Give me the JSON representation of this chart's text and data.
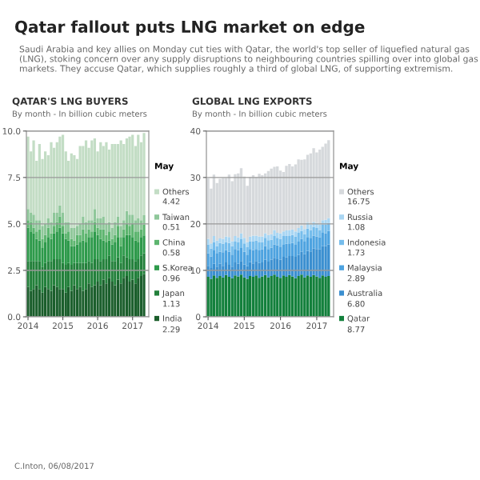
{
  "chart_data": [
    {
      "type": "other",
      "title": "Qatar fallout puts LNG market on edge",
      "subtitle": "Saudi Arabia and key allies on Monday cut ties with Qatar, the world's top seller of liquefied natural gas (LNG), stoking concern over any supply disruptions to neighbouring countries spilling over into global gas markets. They accuse Qatar, which supplies roughly a third of global LNG, of supporting extremism.",
      "annotations": [
        "C.Inton, 06/08/2017"
      ]
    },
    {
      "type": "bar",
      "stacked": true,
      "title": "QATAR'S LNG BUYERS",
      "subtitle": "By month - In billion cubic meters",
      "legend": "right",
      "legend_title": "May",
      "annotations": [
        "4.42",
        "0.51",
        "0.58",
        "0.96",
        "1.13",
        "2.29"
      ],
      "grid": "y",
      "x": [
        "2014-01",
        "2014-02",
        "2014-03",
        "2014-04",
        "2014-05",
        "2014-06",
        "2014-07",
        "2014-08",
        "2014-09",
        "2014-10",
        "2014-11",
        "2014-12",
        "2015-01",
        "2015-02",
        "2015-03",
        "2015-04",
        "2015-05",
        "2015-06",
        "2015-07",
        "2015-08",
        "2015-09",
        "2015-10",
        "2015-11",
        "2015-12",
        "2016-01",
        "2016-02",
        "2016-03",
        "2016-04",
        "2016-05",
        "2016-06",
        "2016-07",
        "2016-08",
        "2016-09",
        "2016-10",
        "2016-11",
        "2016-12",
        "2017-01",
        "2017-02",
        "2017-03",
        "2017-04",
        "2017-05"
      ],
      "xlim": [
        "2013-12-15",
        "2017-06-20"
      ],
      "xticks": [
        "2014",
        "2015",
        "2016",
        "2017"
      ],
      "ylim": [
        0,
        10
      ],
      "yticks": [
        {
          "value": 0,
          "label": "0.0"
        },
        {
          "value": 2.5,
          "label": "2.5"
        },
        {
          "value": 5,
          "label": "5.0"
        },
        {
          "value": 7.5,
          "label": "7.5"
        },
        {
          "value": 10,
          "label": "10.0"
        }
      ],
      "series": [
        {
          "name": "India",
          "color": "#1b5e2c",
          "values": [
            1.6,
            1.4,
            1.5,
            1.7,
            1.5,
            1.3,
            1.6,
            1.5,
            1.4,
            1.7,
            1.6,
            1.5,
            1.5,
            1.3,
            1.6,
            1.4,
            1.7,
            1.5,
            1.6,
            1.4,
            1.5,
            1.8,
            1.6,
            1.7,
            1.9,
            1.7,
            2.0,
            1.8,
            2.1,
            1.9,
            1.7,
            2.0,
            1.8,
            2.1,
            2.2,
            1.9,
            2.0,
            1.8,
            2.1,
            2.2,
            2.29
          ]
        },
        {
          "name": "Japan",
          "color": "#23803b",
          "values": [
            1.4,
            1.6,
            1.5,
            1.3,
            1.5,
            1.4,
            1.3,
            1.5,
            1.6,
            1.4,
            1.5,
            1.6,
            1.4,
            1.5,
            1.3,
            1.4,
            1.2,
            1.4,
            1.3,
            1.5,
            1.4,
            1.2,
            1.3,
            1.4,
            1.2,
            1.3,
            1.1,
            1.3,
            1.2,
            1.1,
            1.3,
            1.2,
            1.1,
            1.2,
            1.0,
            1.2,
            1.1,
            1.2,
            1.0,
            1.1,
            1.13
          ]
        },
        {
          "name": "S.Korea",
          "color": "#2e9a4b",
          "values": [
            1.8,
            1.6,
            1.5,
            1.2,
            1.1,
            1.0,
            1.1,
            1.3,
            1.2,
            1.4,
            1.5,
            1.7,
            1.6,
            1.4,
            1.2,
            1.0,
            0.9,
            1.0,
            1.1,
            1.2,
            1.1,
            1.3,
            1.4,
            1.5,
            1.3,
            1.2,
            1.0,
            0.9,
            0.8,
            0.9,
            1.0,
            1.1,
            0.9,
            1.0,
            1.2,
            1.3,
            1.2,
            1.1,
            0.9,
            1.0,
            0.96
          ]
        },
        {
          "name": "China",
          "color": "#5db56f",
          "values": [
            0.4,
            0.5,
            0.3,
            0.4,
            0.6,
            0.5,
            0.4,
            0.5,
            0.3,
            0.4,
            0.5,
            0.6,
            0.4,
            0.3,
            0.5,
            0.4,
            0.3,
            0.5,
            0.4,
            0.6,
            0.5,
            0.4,
            0.3,
            0.5,
            0.4,
            0.5,
            0.6,
            0.4,
            0.5,
            0.3,
            0.4,
            0.6,
            0.5,
            0.4,
            0.6,
            0.5,
            0.7,
            0.5,
            0.6,
            0.4,
            0.58
          ]
        },
        {
          "name": "Taiwan",
          "color": "#8fc79a",
          "values": [
            0.6,
            0.5,
            0.7,
            0.6,
            0.5,
            0.7,
            0.6,
            0.5,
            0.6,
            0.7,
            0.5,
            0.6,
            0.7,
            0.6,
            0.5,
            0.6,
            0.7,
            0.5,
            0.6,
            0.7,
            0.6,
            0.5,
            0.6,
            0.7,
            0.5,
            0.6,
            0.7,
            0.6,
            0.5,
            0.6,
            0.7,
            0.5,
            0.6,
            0.5,
            0.7,
            0.6,
            0.5,
            0.6,
            0.7,
            0.5,
            0.51
          ]
        },
        {
          "name": "Others",
          "color": "#c3ddc5",
          "values": [
            3.9,
            3.3,
            4.0,
            3.2,
            4.1,
            3.6,
            3.9,
            3.4,
            4.3,
            3.5,
            3.8,
            3.7,
            4.2,
            3.8,
            3.3,
            4.0,
            3.9,
            3.6,
            4.2,
            3.8,
            4.4,
            3.9,
            4.3,
            3.8,
            3.6,
            4.1,
            3.8,
            4.4,
            3.9,
            4.5,
            4.2,
            3.9,
            4.6,
            4.1,
            3.9,
            4.2,
            4.3,
            4.0,
            4.5,
            4.2,
            4.42
          ]
        }
      ]
    },
    {
      "type": "bar",
      "stacked": true,
      "title": "GLOBAL LNG EXPORTS",
      "subtitle": "By month - In billion cubic meters",
      "legend": "right",
      "legend_title": "May",
      "annotations": [
        "16.75",
        "1.08",
        "1.73",
        "2.89",
        "6.80",
        "8.77"
      ],
      "grid": "y",
      "x": [
        "2014-01",
        "2014-02",
        "2014-03",
        "2014-04",
        "2014-05",
        "2014-06",
        "2014-07",
        "2014-08",
        "2014-09",
        "2014-10",
        "2014-11",
        "2014-12",
        "2015-01",
        "2015-02",
        "2015-03",
        "2015-04",
        "2015-05",
        "2015-06",
        "2015-07",
        "2015-08",
        "2015-09",
        "2015-10",
        "2015-11",
        "2015-12",
        "2016-01",
        "2016-02",
        "2016-03",
        "2016-04",
        "2016-05",
        "2016-06",
        "2016-07",
        "2016-08",
        "2016-09",
        "2016-10",
        "2016-11",
        "2016-12",
        "2017-01",
        "2017-02",
        "2017-03",
        "2017-04",
        "2017-05"
      ],
      "xlim": [
        "2013-12-15",
        "2017-06-20"
      ],
      "xticks": [
        "2014",
        "2015",
        "2016",
        "2017"
      ],
      "ylim": [
        0,
        40
      ],
      "yticks": [
        0,
        10,
        20,
        30,
        40
      ],
      "series": [
        {
          "name": "Qatar",
          "color": "#13803c",
          "values": [
            8.6,
            8.2,
            8.9,
            8.4,
            8.8,
            8.5,
            9.0,
            8.6,
            8.3,
            8.9,
            8.7,
            9.1,
            8.5,
            8.2,
            8.8,
            8.6,
            8.9,
            8.4,
            8.7,
            9.0,
            8.5,
            8.8,
            9.1,
            8.6,
            8.4,
            8.9,
            8.6,
            9.0,
            8.7,
            8.3,
            8.8,
            9.1,
            8.5,
            8.9,
            8.6,
            9.0,
            8.7,
            8.4,
            8.9,
            8.6,
            8.77
          ]
        },
        {
          "name": "Australia",
          "color": "#3b8fd0",
          "values": [
            2.4,
            2.3,
            2.5,
            2.4,
            2.6,
            2.5,
            2.7,
            2.6,
            2.5,
            2.8,
            2.7,
            2.9,
            2.8,
            2.7,
            3.0,
            2.9,
            3.1,
            3.2,
            3.0,
            3.3,
            3.4,
            3.5,
            3.6,
            3.8,
            3.9,
            4.0,
            4.2,
            4.1,
            4.4,
            4.6,
            4.5,
            4.9,
            5.0,
            5.3,
            5.5,
            5.7,
            5.9,
            6.1,
            6.3,
            6.6,
            6.8
          ]
        },
        {
          "name": "Malaysia",
          "color": "#4ea3e0",
          "values": [
            2.7,
            2.5,
            2.9,
            2.8,
            2.6,
            2.9,
            2.7,
            2.8,
            2.6,
            2.9,
            3.0,
            2.8,
            2.7,
            2.5,
            2.8,
            2.9,
            2.6,
            2.7,
            2.8,
            2.9,
            2.7,
            2.6,
            2.9,
            3.0,
            2.8,
            2.6,
            2.9,
            2.7,
            2.8,
            2.6,
            2.9,
            2.8,
            2.7,
            3.0,
            2.9,
            2.8,
            2.7,
            2.6,
            2.9,
            2.8,
            2.89
          ]
        },
        {
          "name": "Indonesia",
          "color": "#76bdec",
          "values": [
            1.9,
            1.7,
            1.8,
            1.6,
            1.9,
            1.8,
            1.7,
            1.9,
            1.8,
            1.6,
            1.7,
            1.9,
            1.8,
            1.6,
            1.7,
            1.9,
            1.8,
            1.7,
            1.6,
            1.8,
            1.9,
            1.7,
            1.8,
            1.6,
            1.7,
            1.9,
            1.8,
            1.6,
            1.7,
            1.8,
            1.9,
            1.7,
            1.6,
            1.8,
            1.7,
            1.9,
            1.8,
            1.6,
            1.7,
            1.8,
            1.73
          ]
        },
        {
          "name": "Russia",
          "color": "#a9d6f3",
          "values": [
            1.2,
            1.1,
            1.3,
            1.2,
            1.0,
            1.1,
            1.2,
            1.3,
            1.1,
            1.2,
            1.0,
            1.3,
            1.2,
            1.1,
            1.0,
            1.2,
            1.1,
            1.3,
            1.2,
            1.0,
            1.1,
            1.2,
            1.3,
            1.1,
            1.2,
            1.0,
            1.1,
            1.3,
            1.2,
            1.1,
            1.0,
            1.2,
            1.1,
            1.3,
            1.2,
            1.0,
            1.1,
            1.2,
            1.0,
            1.1,
            1.08
          ]
        },
        {
          "name": "Others",
          "color": "#d6d9dc",
          "values": [
            13.0,
            11.8,
            13.2,
            12.4,
            12.8,
            13.1,
            12.6,
            13.4,
            12.9,
            13.3,
            13.8,
            14.0,
            13.2,
            12.1,
            12.8,
            13.0,
            12.6,
            13.5,
            13.2,
            12.9,
            13.8,
            14.1,
            13.6,
            14.3,
            13.5,
            12.8,
            13.9,
            14.2,
            13.6,
            14.4,
            14.8,
            14.1,
            15.0,
            14.6,
            15.3,
            15.9,
            15.2,
            16.1,
            15.8,
            16.4,
            16.75
          ]
        }
      ]
    }
  ]
}
